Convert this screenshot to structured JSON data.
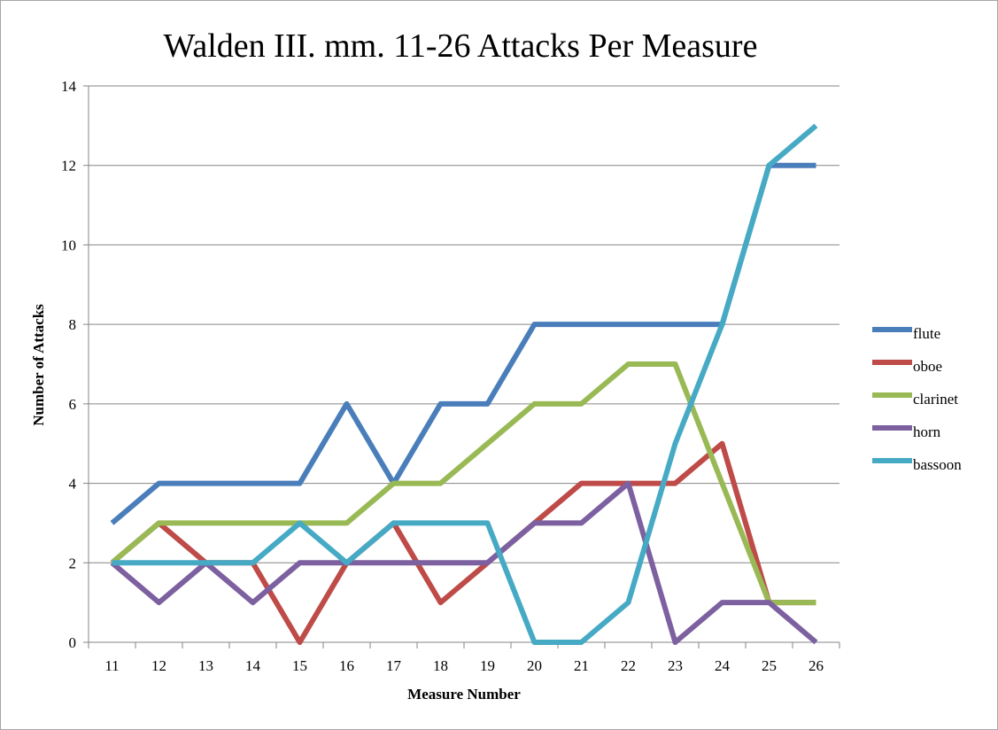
{
  "chart_data": {
    "type": "line",
    "title": "Walden III. mm. 11-26 Attacks Per Measure",
    "xlabel": "Measure Number",
    "ylabel": "Number of Attacks",
    "categories": [
      "11",
      "12",
      "13",
      "14",
      "15",
      "16",
      "17",
      "18",
      "19",
      "20",
      "21",
      "22",
      "23",
      "24",
      "25",
      "26"
    ],
    "ylim": [
      0,
      14
    ],
    "yticks": [
      "0",
      "2",
      "4",
      "6",
      "8",
      "10",
      "12",
      "14"
    ],
    "grid": "horizontal",
    "legend_position": "right",
    "series": [
      {
        "name": "flute",
        "color": "#4a7ebb",
        "values": [
          3,
          4,
          4,
          4,
          4,
          6,
          4,
          6,
          6,
          8,
          8,
          8,
          8,
          8,
          12,
          12
        ]
      },
      {
        "name": "oboe",
        "color": "#be4b48",
        "values": [
          2,
          3,
          2,
          2,
          0,
          2,
          3,
          1,
          2,
          3,
          4,
          4,
          4,
          5,
          1,
          1
        ]
      },
      {
        "name": "clarinet",
        "color": "#98b954",
        "values": [
          2,
          3,
          3,
          3,
          3,
          3,
          4,
          4,
          5,
          6,
          6,
          7,
          7,
          4,
          1,
          1
        ]
      },
      {
        "name": "horn",
        "color": "#7d60a0",
        "values": [
          2,
          1,
          2,
          1,
          2,
          2,
          2,
          2,
          2,
          3,
          3,
          4,
          0,
          1,
          1,
          0
        ]
      },
      {
        "name": "bassoon",
        "color": "#46aac5",
        "values": [
          2,
          2,
          2,
          2,
          3,
          2,
          3,
          3,
          3,
          0,
          0,
          1,
          5,
          8,
          12,
          13
        ]
      }
    ]
  }
}
